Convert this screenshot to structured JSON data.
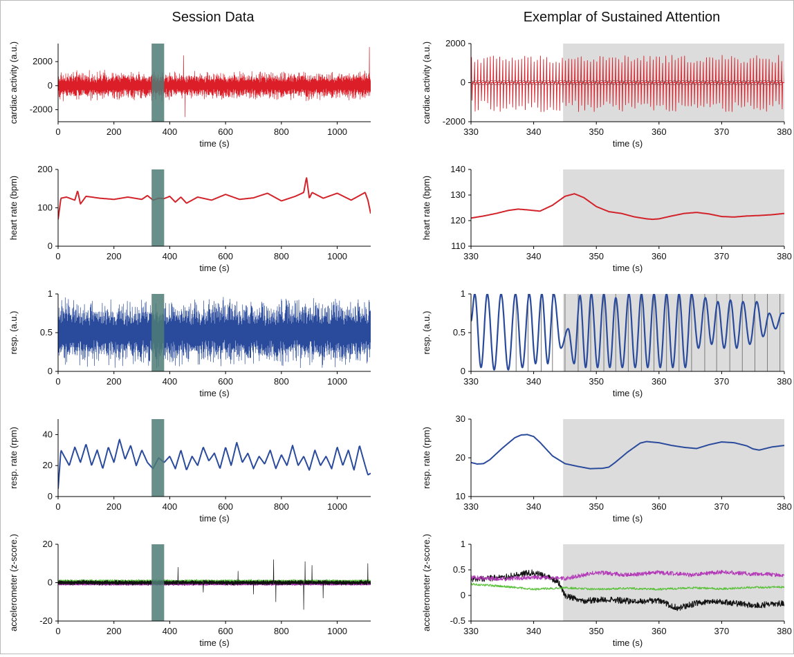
{
  "titles": {
    "left": "Session Data",
    "right": "Exemplar of Sustained Attention"
  },
  "colors": {
    "cardiac": "#dc1e28",
    "heart": "#d2232a",
    "resp": "#2a4a9c",
    "accel_black": "#111111",
    "accel_magenta": "#b33bb8",
    "accel_green": "#59c13a",
    "highlight_bar": "#4e7b76",
    "sustained_region": "#dcdcdc"
  },
  "chart_data": [
    {
      "id": "L0",
      "type": "line",
      "series_kind": "noise",
      "xlabel": "time (s)",
      "ylabel": "cardiac activity (a.u.)",
      "xlim": [
        0,
        1120
      ],
      "ylim": [
        -3000,
        3500
      ],
      "xticks": [
        0,
        200,
        400,
        600,
        800,
        1000
      ],
      "yticks": [
        -2000,
        0,
        2000
      ],
      "highlight_bar": [
        335,
        380
      ],
      "series": [
        {
          "color_key": "cardiac",
          "amplitude": 1300,
          "spikes": [
            [
              450,
              2500
            ],
            [
              455,
              -2600
            ],
            [
              1115,
              3200
            ]
          ]
        }
      ]
    },
    {
      "id": "R0",
      "type": "line",
      "series_kind": "ecg",
      "xlabel": "time (s)",
      "ylabel": "cardiac activity (a.u.)",
      "xlim": [
        330,
        380
      ],
      "ylim": [
        -2000,
        2000
      ],
      "xticks": [
        330,
        340,
        350,
        360,
        370,
        380
      ],
      "yticks": [
        -2000,
        0,
        2000
      ],
      "shaded_region": [
        344.7,
        380
      ],
      "series": [
        {
          "color_key": "cardiac",
          "beat_interval_s": 0.5,
          "peak": 1400,
          "trough": -1500
        }
      ]
    },
    {
      "id": "L1",
      "type": "line",
      "xlabel": "time (s)",
      "ylabel": "heart rate (bpm)",
      "xlim": [
        0,
        1120
      ],
      "ylim": [
        0,
        200
      ],
      "xticks": [
        0,
        200,
        400,
        600,
        800,
        1000
      ],
      "yticks": [
        0,
        100,
        200
      ],
      "highlight_bar": [
        335,
        380
      ],
      "series": [
        {
          "color_key": "heart",
          "x": [
            0,
            10,
            30,
            60,
            70,
            80,
            100,
            150,
            200,
            250,
            300,
            320,
            340,
            360,
            380,
            400,
            420,
            440,
            460,
            500,
            550,
            600,
            650,
            700,
            750,
            800,
            850,
            880,
            890,
            900,
            910,
            950,
            1000,
            1050,
            1100,
            1110,
            1120
          ],
          "y": [
            70,
            125,
            128,
            120,
            145,
            110,
            130,
            125,
            122,
            128,
            122,
            132,
            120,
            125,
            124,
            130,
            115,
            128,
            112,
            128,
            120,
            135,
            122,
            126,
            138,
            118,
            130,
            140,
            180,
            125,
            140,
            125,
            138,
            120,
            140,
            120,
            85
          ]
        }
      ]
    },
    {
      "id": "R1",
      "type": "line",
      "xlabel": "time (s)",
      "ylabel": "heart rate (bpm)",
      "xlim": [
        330,
        380
      ],
      "ylim": [
        110,
        140
      ],
      "xticks": [
        330,
        340,
        350,
        360,
        370,
        380
      ],
      "yticks": [
        110,
        120,
        130,
        140
      ],
      "shaded_region": [
        344.7,
        380
      ],
      "series": [
        {
          "color_key": "heart",
          "x": [
            330,
            332,
            334,
            336,
            337.5,
            339,
            341,
            343,
            345,
            346.5,
            348,
            350,
            352,
            354,
            356,
            358,
            359,
            360,
            362,
            364,
            366,
            368,
            370,
            372,
            374,
            376,
            378,
            380
          ],
          "y": [
            121,
            121.8,
            122.8,
            124,
            124.5,
            124.2,
            123.7,
            126,
            129.5,
            130.5,
            129,
            125.5,
            123.5,
            122.8,
            121.5,
            120.7,
            120.5,
            120.7,
            121.8,
            122.8,
            123.2,
            122.6,
            121.6,
            121.4,
            121.8,
            122,
            122.3,
            122.8
          ]
        }
      ]
    },
    {
      "id": "L2",
      "type": "line",
      "series_kind": "noise",
      "xlabel": "time (s)",
      "ylabel": "resp. (a.u.)",
      "xlim": [
        0,
        1120
      ],
      "ylim": [
        0,
        1
      ],
      "xticks": [
        0,
        200,
        400,
        600,
        800,
        1000
      ],
      "yticks": [
        0,
        0.5,
        1
      ],
      "highlight_bar": [
        335,
        380
      ],
      "series": [
        {
          "color_key": "resp",
          "center": 0.5,
          "amplitude": 0.47
        }
      ]
    },
    {
      "id": "R2",
      "type": "line",
      "series_kind": "breath",
      "xlabel": "time (s)",
      "ylabel": "resp. (a.u.)",
      "xlim": [
        330,
        380
      ],
      "ylim": [
        0,
        1
      ],
      "xticks": [
        330,
        340,
        350,
        360,
        370,
        380
      ],
      "yticks": [
        0,
        0.5,
        1
      ],
      "shaded_region": [
        344.7,
        380
      ],
      "vertical_markers": [
        337.2,
        339.1,
        341.2,
        343.0,
        345.0,
        347.1,
        349.1,
        351.2,
        353.1,
        355.1,
        357.2,
        359.2,
        361.2,
        363.2,
        365.2,
        367.3,
        369.2,
        371.3,
        373.3,
        375.3,
        377.3,
        379.3
      ],
      "series": [
        {
          "color_key": "resp",
          "breath_peaks": [
            330.6,
            332.6,
            334.8,
            337.1,
            339.3,
            341.3,
            343.2,
            345.5,
            347.4,
            349.2,
            351.2,
            353.1,
            355.2,
            357.2,
            359.2,
            361.2,
            363.2,
            365.2,
            367.4,
            369.4,
            371.4,
            373.4,
            375.6,
            377.6,
            379.6
          ],
          "peak_values": [
            1.0,
            1.0,
            1.0,
            1.0,
            1.0,
            1.0,
            1.0,
            0.55,
            0.98,
            1.0,
            1.0,
            0.95,
            1.0,
            1.0,
            1.0,
            1.0,
            1.0,
            1.0,
            0.95,
            0.9,
            0.92,
            0.9,
            0.9,
            0.75,
            0.75
          ],
          "trough_values": [
            0.65,
            0.05,
            0.02,
            0.02,
            0.05,
            0.1,
            0.1,
            0.3,
            0.1,
            0.05,
            0.05,
            0.05,
            0.05,
            0.05,
            0.05,
            0.05,
            0.05,
            0.05,
            0.3,
            0.35,
            0.3,
            0.3,
            0.35,
            0.45,
            0.55
          ]
        }
      ]
    },
    {
      "id": "L3",
      "type": "line",
      "xlabel": "time (s)",
      "ylabel": "resp. rate (rpm)",
      "xlim": [
        0,
        1120
      ],
      "ylim": [
        0,
        50
      ],
      "xticks": [
        0,
        200,
        400,
        600,
        800,
        1000
      ],
      "yticks": [
        0,
        20,
        40
      ],
      "highlight_bar": [
        335,
        380
      ],
      "series": [
        {
          "color_key": "resp",
          "x": [
            0,
            10,
            40,
            60,
            80,
            100,
            120,
            140,
            160,
            180,
            200,
            220,
            240,
            260,
            280,
            300,
            320,
            340,
            360,
            380,
            400,
            420,
            440,
            460,
            480,
            500,
            520,
            540,
            560,
            580,
            600,
            620,
            640,
            660,
            680,
            700,
            720,
            740,
            760,
            780,
            800,
            820,
            840,
            860,
            880,
            900,
            920,
            940,
            960,
            980,
            1000,
            1020,
            1040,
            1060,
            1080,
            1100,
            1110,
            1120
          ],
          "y": [
            5,
            30,
            20,
            32,
            22,
            34,
            20,
            30,
            18,
            32,
            22,
            37,
            24,
            33,
            20,
            30,
            22,
            18,
            25,
            22,
            26,
            18,
            30,
            17,
            26,
            20,
            32,
            23,
            28,
            18,
            32,
            20,
            35,
            22,
            28,
            18,
            26,
            21,
            30,
            18,
            27,
            20,
            33,
            20,
            26,
            17,
            30,
            20,
            26,
            18,
            32,
            20,
            30,
            17,
            33,
            20,
            14,
            15
          ]
        }
      ]
    },
    {
      "id": "R3",
      "type": "line",
      "xlabel": "time (s)",
      "ylabel": "resp. rate (rpm)",
      "xlim": [
        330,
        380
      ],
      "ylim": [
        10,
        30
      ],
      "xticks": [
        330,
        340,
        350,
        360,
        370,
        380
      ],
      "yticks": [
        10,
        20,
        30
      ],
      "shaded_region": [
        344.7,
        380
      ],
      "series": [
        {
          "color_key": "resp",
          "x": [
            330,
            331,
            332,
            333,
            335,
            337,
            338,
            339,
            340,
            341,
            343,
            345,
            347,
            349,
            351,
            352,
            353,
            355,
            357,
            358,
            360,
            362,
            364,
            366,
            368,
            370,
            372,
            374,
            375,
            376,
            378,
            380
          ],
          "y": [
            18.8,
            18.4,
            18.5,
            19.5,
            22.5,
            25.2,
            25.9,
            26,
            25.5,
            24,
            20.5,
            18.5,
            17.8,
            17.2,
            17.3,
            17.6,
            18.8,
            21.5,
            23.8,
            24.2,
            23.9,
            23.2,
            22.7,
            22.4,
            23.4,
            24.1,
            23.9,
            23.1,
            22.3,
            22,
            22.8,
            23.2
          ]
        }
      ]
    },
    {
      "id": "L4",
      "type": "line",
      "series_kind": "noise",
      "xlabel": "time (s)",
      "ylabel": "accelerometer (z-score.)",
      "xlim": [
        0,
        1120
      ],
      "ylim": [
        -20,
        20
      ],
      "xticks": [
        0,
        200,
        400,
        600,
        800,
        1000
      ],
      "yticks": [
        -20,
        0,
        20
      ],
      "highlight_bar": [
        335,
        380
      ],
      "series": [
        {
          "color_key": "accel_magenta",
          "center": -0.8,
          "amplitude": 0.8
        },
        {
          "color_key": "accel_green",
          "center": 0.8,
          "amplitude": 1.0
        },
        {
          "color_key": "accel_black",
          "center": 0,
          "amplitude": 1.5,
          "spikes": [
            [
              430,
              8
            ],
            [
              520,
              -5
            ],
            [
              645,
              6
            ],
            [
              700,
              -6
            ],
            [
              772,
              12
            ],
            [
              780,
              -10
            ],
            [
              880,
              -14
            ],
            [
              885,
              11
            ],
            [
              910,
              9
            ],
            [
              950,
              -8
            ],
            [
              1110,
              10
            ]
          ]
        }
      ]
    },
    {
      "id": "R4",
      "type": "line",
      "series_kind": "noise",
      "xlabel": "time (s)",
      "ylabel": "accelerometer (z-score.)",
      "xlim": [
        330,
        380
      ],
      "ylim": [
        -0.5,
        1
      ],
      "xticks": [
        330,
        340,
        350,
        360,
        370,
        380
      ],
      "yticks": [
        -0.5,
        0,
        0.5,
        1
      ],
      "shaded_region": [
        344.7,
        380
      ],
      "series": [
        {
          "color_key": "accel_black",
          "x": [
            330,
            335,
            338,
            340,
            342,
            344,
            345,
            348,
            352,
            356,
            360,
            362,
            363,
            366,
            370,
            375,
            380
          ],
          "y": [
            0.32,
            0.35,
            0.42,
            0.45,
            0.38,
            0.25,
            0.0,
            -0.1,
            -0.08,
            -0.12,
            -0.1,
            -0.2,
            -0.25,
            -0.15,
            -0.12,
            -0.2,
            -0.15
          ],
          "amplitude": 0.06
        },
        {
          "color_key": "accel_magenta",
          "x": [
            330,
            335,
            340,
            345,
            350,
            355,
            360,
            365,
            370,
            375,
            380
          ],
          "y": [
            0.35,
            0.32,
            0.36,
            0.33,
            0.45,
            0.4,
            0.45,
            0.4,
            0.46,
            0.42,
            0.4
          ],
          "amplitude": 0.04
        },
        {
          "color_key": "accel_green",
          "x": [
            330,
            335,
            340,
            345,
            350,
            355,
            360,
            365,
            370,
            375,
            380
          ],
          "y": [
            0.22,
            0.18,
            0.12,
            0.15,
            0.12,
            0.14,
            0.12,
            0.15,
            0.13,
            0.16,
            0.16
          ],
          "amplitude": 0.02
        }
      ]
    }
  ]
}
